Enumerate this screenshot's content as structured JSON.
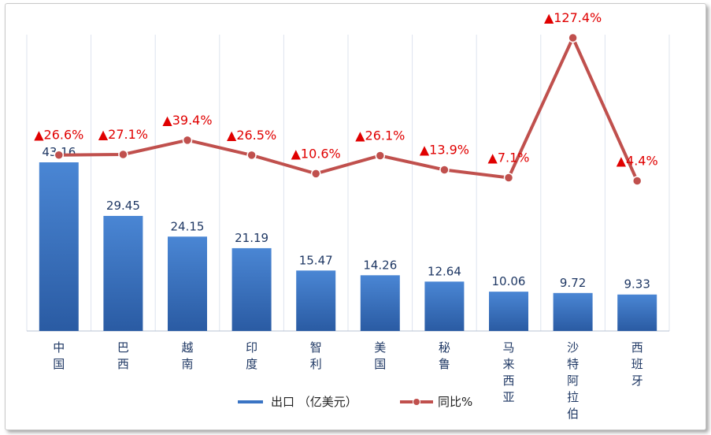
{
  "chart_data": {
    "type": "bar",
    "categories": [
      "中国",
      "巴西",
      "越南",
      "印度",
      "智利",
      "美国",
      "秘鲁",
      "马来西亚",
      "沙特阿拉伯",
      "西班牙"
    ],
    "series": [
      {
        "name": "出口 （亿美元）",
        "type": "bar",
        "values": [
          43.16,
          29.45,
          24.15,
          21.19,
          15.47,
          14.26,
          12.64,
          10.06,
          9.72,
          9.33
        ],
        "labels": [
          "43.16",
          "29.45",
          "24.15",
          "21.19",
          "15.47",
          "14.26",
          "12.64",
          "10.06",
          "9.72",
          "9.33"
        ],
        "color": "#3a74c4"
      },
      {
        "name": "同比%",
        "type": "line",
        "values": [
          26.6,
          27.1,
          39.4,
          26.5,
          10.6,
          26.1,
          13.9,
          7.1,
          127.4,
          4.4
        ],
        "labels": [
          "▲26.6%",
          "▲27.1%",
          "▲39.4%",
          "▲26.5%",
          "▲10.6%",
          "▲26.1%",
          "▲13.9%",
          "▲7.1%",
          "▲127.4%",
          "▲4.4%"
        ],
        "color": "#c0504d"
      }
    ],
    "legend_position": "bottom",
    "grid": "vertical",
    "title": "",
    "xlabel": "",
    "ylabel": ""
  }
}
